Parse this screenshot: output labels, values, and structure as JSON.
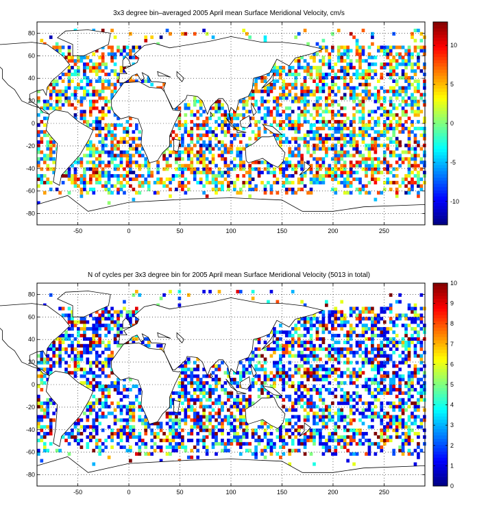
{
  "chart_data": [
    {
      "type": "heatmap",
      "title": "3x3 degree bin–averaged 2005 April mean Surface Meridional Velocity, cm/s",
      "xlim": [
        -90,
        290
      ],
      "ylim": [
        -90,
        90
      ],
      "xticks": [
        -50,
        0,
        50,
        100,
        150,
        200,
        250
      ],
      "yticks": [
        80,
        60,
        40,
        20,
        0,
        -20,
        -40,
        -60,
        -80
      ],
      "grid": "dotted",
      "bin_size_deg": 3,
      "colorbar": {
        "range": [
          -13,
          13
        ],
        "ticks": [
          10,
          5,
          0,
          -5,
          -10
        ],
        "colormap": "jet"
      },
      "seed": 2005
    },
    {
      "type": "heatmap",
      "title": "N of cycles per 3x3 degree bin for 2005 April mean Surface Meridional Velocity (5013 in total)",
      "xlim": [
        -90,
        290
      ],
      "ylim": [
        -90,
        90
      ],
      "xticks": [
        -50,
        0,
        50,
        100,
        150,
        200,
        250
      ],
      "yticks": [
        80,
        60,
        40,
        20,
        0,
        -20,
        -40,
        -60,
        -80
      ],
      "grid": "dotted",
      "bin_size_deg": 3,
      "colorbar": {
        "range": [
          0,
          10
        ],
        "ticks": [
          10,
          9,
          8,
          7,
          6,
          5,
          4,
          3,
          2,
          1,
          0
        ],
        "colormap": "jet"
      },
      "seed": 4
    }
  ]
}
